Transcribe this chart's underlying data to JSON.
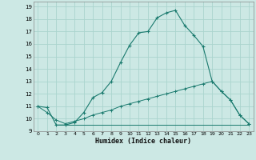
{
  "xlabel": "Humidex (Indice chaleur)",
  "xlim": [
    -0.5,
    23.5
  ],
  "ylim": [
    9,
    19.4
  ],
  "xticks": [
    0,
    1,
    2,
    3,
    4,
    5,
    6,
    7,
    8,
    9,
    10,
    11,
    12,
    13,
    14,
    15,
    16,
    17,
    18,
    19,
    20,
    21,
    22,
    23
  ],
  "yticks": [
    9,
    10,
    11,
    12,
    13,
    14,
    15,
    16,
    17,
    18,
    19
  ],
  "bg_color": "#cce8e4",
  "grid_color": "#aad4ce",
  "line_color": "#1a7a6e",
  "curve1_x": [
    0,
    1,
    2,
    3,
    4,
    5,
    6,
    7,
    8,
    9,
    10,
    11,
    12,
    13,
    14,
    15,
    16,
    17,
    18,
    19,
    20,
    21,
    22,
    23
  ],
  "curve1_y": [
    11.0,
    10.9,
    9.5,
    9.5,
    9.7,
    10.5,
    11.7,
    12.1,
    13.0,
    14.5,
    15.9,
    16.9,
    17.0,
    18.1,
    18.5,
    18.7,
    17.5,
    16.7,
    15.8,
    13.0,
    12.2,
    11.5,
    10.3,
    9.6
  ],
  "curve2_x": [
    0,
    1,
    2,
    3,
    4,
    5,
    6,
    7,
    8,
    9,
    10,
    11,
    12,
    13,
    14,
    15,
    16,
    17,
    18,
    19,
    20,
    21,
    22,
    23
  ],
  "curve2_y": [
    11.0,
    10.5,
    9.9,
    9.6,
    9.8,
    10.0,
    10.3,
    10.5,
    10.7,
    11.0,
    11.2,
    11.4,
    11.6,
    11.8,
    12.0,
    12.2,
    12.4,
    12.6,
    12.8,
    13.0,
    12.2,
    11.5,
    10.3,
    9.6
  ],
  "curve3_x": [
    2,
    3,
    4,
    5,
    6,
    7,
    8,
    9,
    10,
    11,
    12,
    13,
    14,
    15,
    16,
    17,
    18,
    19,
    20,
    21,
    22,
    23
  ],
  "curve3_y": [
    9.5,
    9.5,
    9.5,
    9.5,
    9.5,
    9.5,
    9.5,
    9.5,
    9.5,
    9.5,
    9.5,
    9.5,
    9.5,
    9.5,
    9.5,
    9.5,
    9.5,
    9.5,
    9.5,
    9.5,
    9.5,
    9.5
  ]
}
